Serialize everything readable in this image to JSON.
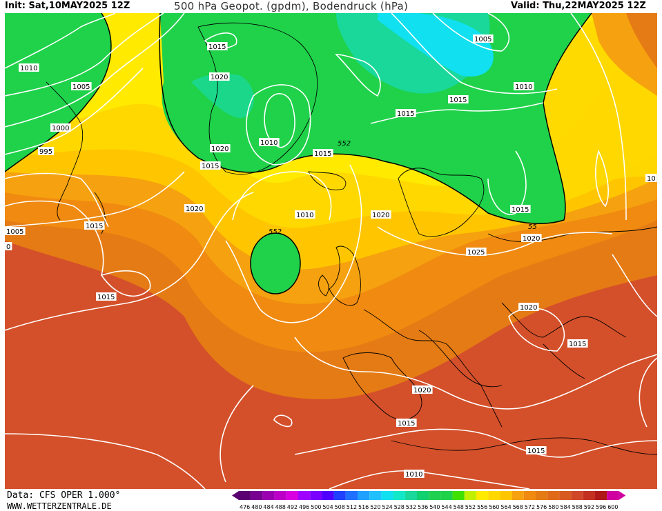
{
  "header": {
    "init": "Init: Sat,10MAY2025 12Z",
    "title": "500 hPa Geopot. (gpdm), Bodendruck (hPa)",
    "valid": "Valid: Thu,22MAY2025 12Z"
  },
  "footer": {
    "data_source": "Data: CFS OPER 1.000°",
    "website": "WWW.WETTERZENTRALE.DE"
  },
  "colors": {
    "green": "#1fd24a",
    "cyan": "#10e0f0",
    "teal": "#19d89a",
    "yellow": "#ffea00",
    "gold": "#ffc600",
    "orange": "#f6a10f",
    "dark_orange": "#e57b14",
    "red": "#d1472a",
    "isobar": "#ffffff",
    "coast": "#000000"
  },
  "scale": {
    "values": [
      "476",
      "480",
      "484",
      "488",
      "492",
      "496",
      "500",
      "504",
      "508",
      "512",
      "516",
      "520",
      "524",
      "528",
      "532",
      "536",
      "540",
      "544",
      "548",
      "552",
      "556",
      "560",
      "564",
      "568",
      "572",
      "576",
      "580",
      "584",
      "588",
      "592",
      "596",
      "600"
    ],
    "colors": [
      "#5a0070",
      "#780090",
      "#9a00b0",
      "#bc00c8",
      "#d800e0",
      "#a000ff",
      "#7a00ff",
      "#5000ff",
      "#2040ff",
      "#2070ff",
      "#20a0ff",
      "#20c0ff",
      "#10e0f0",
      "#10e8c8",
      "#19d89a",
      "#10d070",
      "#20d050",
      "#1fd24a",
      "#40e000",
      "#c0f000",
      "#ffea00",
      "#ffd800",
      "#ffc600",
      "#f6a10f",
      "#f08a10",
      "#e57b14",
      "#e06a18",
      "#d85a20",
      "#d1472a",
      "#c43020",
      "#b01818",
      "#d000a0"
    ]
  },
  "isobar_labels": [
    {
      "text": "1010"
    },
    {
      "text": "1005"
    },
    {
      "text": "1000"
    },
    {
      "text": "995"
    },
    {
      "text": "1005"
    },
    {
      "text": "1015"
    },
    {
      "text": "1020"
    },
    {
      "text": "1015"
    },
    {
      "text": "1015"
    },
    {
      "text": "1020"
    },
    {
      "text": "1015"
    },
    {
      "text": "1010"
    },
    {
      "text": "1020"
    },
    {
      "text": "1015"
    },
    {
      "text": "1015"
    },
    {
      "text": "1005"
    },
    {
      "text": "1010"
    },
    {
      "text": "1015"
    },
    {
      "text": "1010"
    },
    {
      "text": "1020"
    },
    {
      "text": "1025"
    },
    {
      "text": "1015"
    },
    {
      "text": "1020"
    },
    {
      "text": "1020"
    },
    {
      "text": "1015"
    },
    {
      "text": "1020"
    },
    {
      "text": "1015"
    },
    {
      "text": "1015"
    },
    {
      "text": "1010"
    },
    {
      "text": "10"
    },
    {
      "text": "0"
    }
  ],
  "contour_labels": [
    {
      "text": "552"
    },
    {
      "text": "552"
    },
    {
      "text": "55"
    }
  ]
}
